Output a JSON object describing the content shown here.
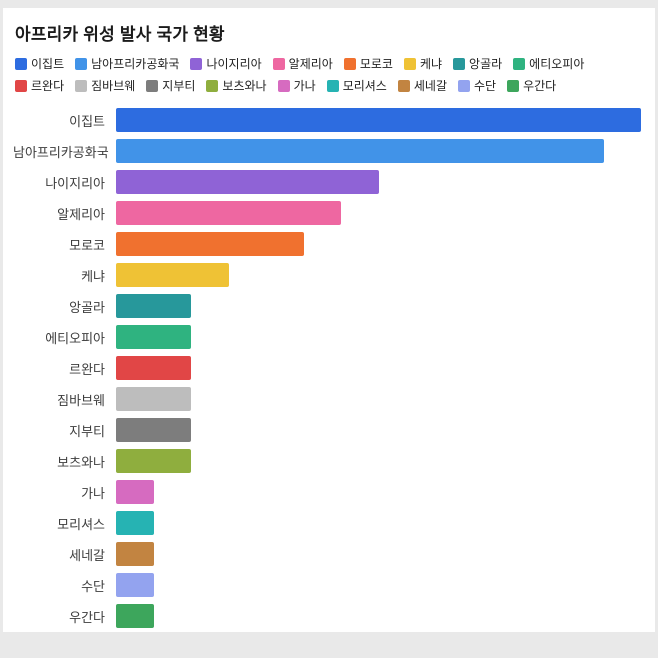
{
  "page": {
    "background_color": "#e9e9e9",
    "card_background_color": "#ffffff"
  },
  "title": "아프리카 위성 발사 국가 현황",
  "chart_data": {
    "type": "bar",
    "orientation": "horizontal",
    "title": "아프리카 위성 발사 국가 현황",
    "xlabel": "",
    "ylabel": "",
    "xlim": [
      0,
      14
    ],
    "x_ticks": [
      0,
      1,
      2,
      3,
      4,
      5,
      6,
      7,
      8,
      9,
      10,
      11,
      12,
      13,
      14
    ],
    "grid": false,
    "legend_position": "top",
    "categories": [
      "이집트",
      "남아프리카공화국",
      "나이지리아",
      "알제리아",
      "모로코",
      "케냐",
      "앙골라",
      "에티오피아",
      "르완다",
      "짐바브웨",
      "지부티",
      "보츠와나",
      "가나",
      "모리셔스",
      "세네갈",
      "수단",
      "우간다"
    ],
    "values": [
      14,
      13,
      7,
      6,
      5,
      3,
      2,
      2,
      2,
      2,
      2,
      2,
      1,
      1,
      1,
      1,
      1
    ],
    "colors": [
      "#2d6ce0",
      "#4193e8",
      "#8f63d6",
      "#ee67a1",
      "#f0712f",
      "#efc235",
      "#27989b",
      "#2fb380",
      "#e14646",
      "#bdbdbd",
      "#7d7d7d",
      "#8fae3e",
      "#d66bc0",
      "#26b3b3",
      "#c28441",
      "#93a3ef",
      "#3da65c"
    ]
  }
}
